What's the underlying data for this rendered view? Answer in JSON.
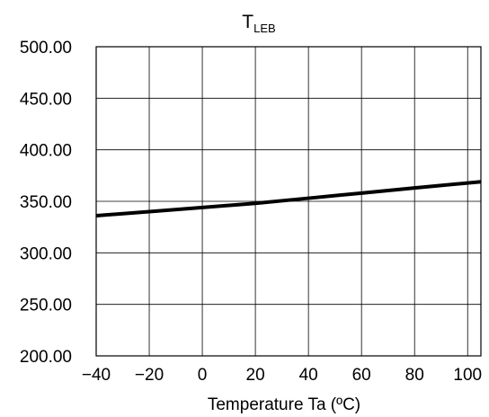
{
  "chart_data": {
    "type": "line",
    "title": "T",
    "title_subscript": "LEB",
    "xlabel": "Temperature Ta (ºC)",
    "ylabel": "",
    "xlim": [
      -40,
      105
    ],
    "ylim": [
      200,
      500
    ],
    "x_ticks": [
      -40,
      -20,
      0,
      20,
      40,
      60,
      80,
      100
    ],
    "x_tick_labels": [
      "−40",
      "−20",
      "0",
      "20",
      "40",
      "60",
      "80",
      "100"
    ],
    "y_ticks": [
      200,
      250,
      300,
      350,
      400,
      450,
      500
    ],
    "y_tick_labels": [
      "200.00",
      "250.00",
      "300.00",
      "350.00",
      "400.00",
      "450.00",
      "500.00"
    ],
    "grid": true,
    "legend": "none",
    "series": [
      {
        "x": [
          -40,
          -20,
          0,
          20,
          40,
          60,
          80,
          105
        ],
        "y": [
          336,
          340,
          344,
          348,
          353,
          358,
          363,
          369
        ],
        "color": "#000000"
      }
    ]
  }
}
